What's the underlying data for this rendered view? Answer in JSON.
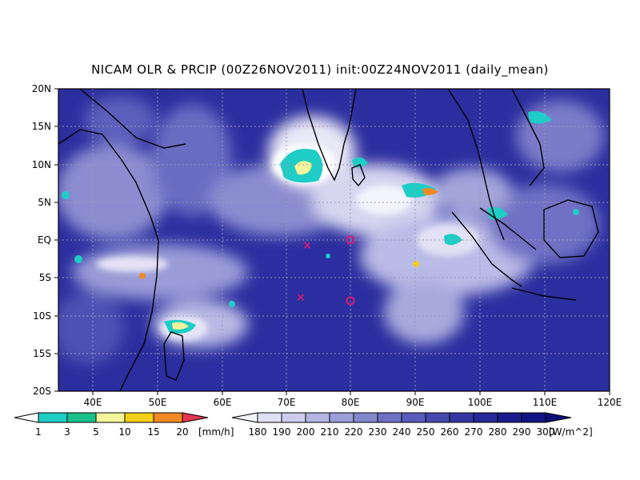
{
  "title": "NICAM OLR & PRCIP (00Z26NOV2011) init:00Z24NOV2011 (daily_mean)",
  "map": {
    "lon_range": [
      35,
      120
    ],
    "lat_range": [
      -20,
      20
    ],
    "lat_labels": [
      "20N",
      "15N",
      "10N",
      "5N",
      "EQ",
      "5S",
      "10S",
      "15S",
      "20S"
    ],
    "lon_labels": [
      "40E",
      "50E",
      "60E",
      "70E",
      "80E",
      "90E",
      "100E",
      "110E",
      "120E"
    ],
    "gridlines": "dotted",
    "markers": [
      {
        "symbol": "x",
        "lon": 73.3,
        "lat": -0.5,
        "color": "#d81b74"
      },
      {
        "symbol": "x",
        "lon": 72.5,
        "lat": -7.3,
        "color": "#d81b74"
      },
      {
        "symbol": "o",
        "lon": 80,
        "lat": 0,
        "color": "#d81b74"
      },
      {
        "symbol": "o",
        "lon": 80,
        "lat": -8,
        "color": "#d81b74"
      }
    ]
  },
  "precip_colorbar": {
    "labels": [
      "1",
      "3",
      "5",
      "10",
      "15",
      "20"
    ],
    "unit": "[mm/h]",
    "colors": [
      "#1ecdc6",
      "#18c08a",
      "#f2f59a",
      "#f2d018",
      "#f08a22",
      "#e8364f"
    ]
  },
  "olr_colorbar": {
    "labels": [
      "180",
      "190",
      "200",
      "210",
      "220",
      "230",
      "240",
      "250",
      "260",
      "270",
      "280",
      "290",
      "300"
    ],
    "unit": "[W/m^2]",
    "colors": [
      "#f2f2fb",
      "#e0e0f4",
      "#ccccec",
      "#b4b5e2",
      "#9c9ed8",
      "#8587ce",
      "#6e70c4",
      "#595cba",
      "#4649ae",
      "#3436a3",
      "#262897",
      "#1b1c8d",
      "#121483",
      "#0c0d78"
    ]
  }
}
